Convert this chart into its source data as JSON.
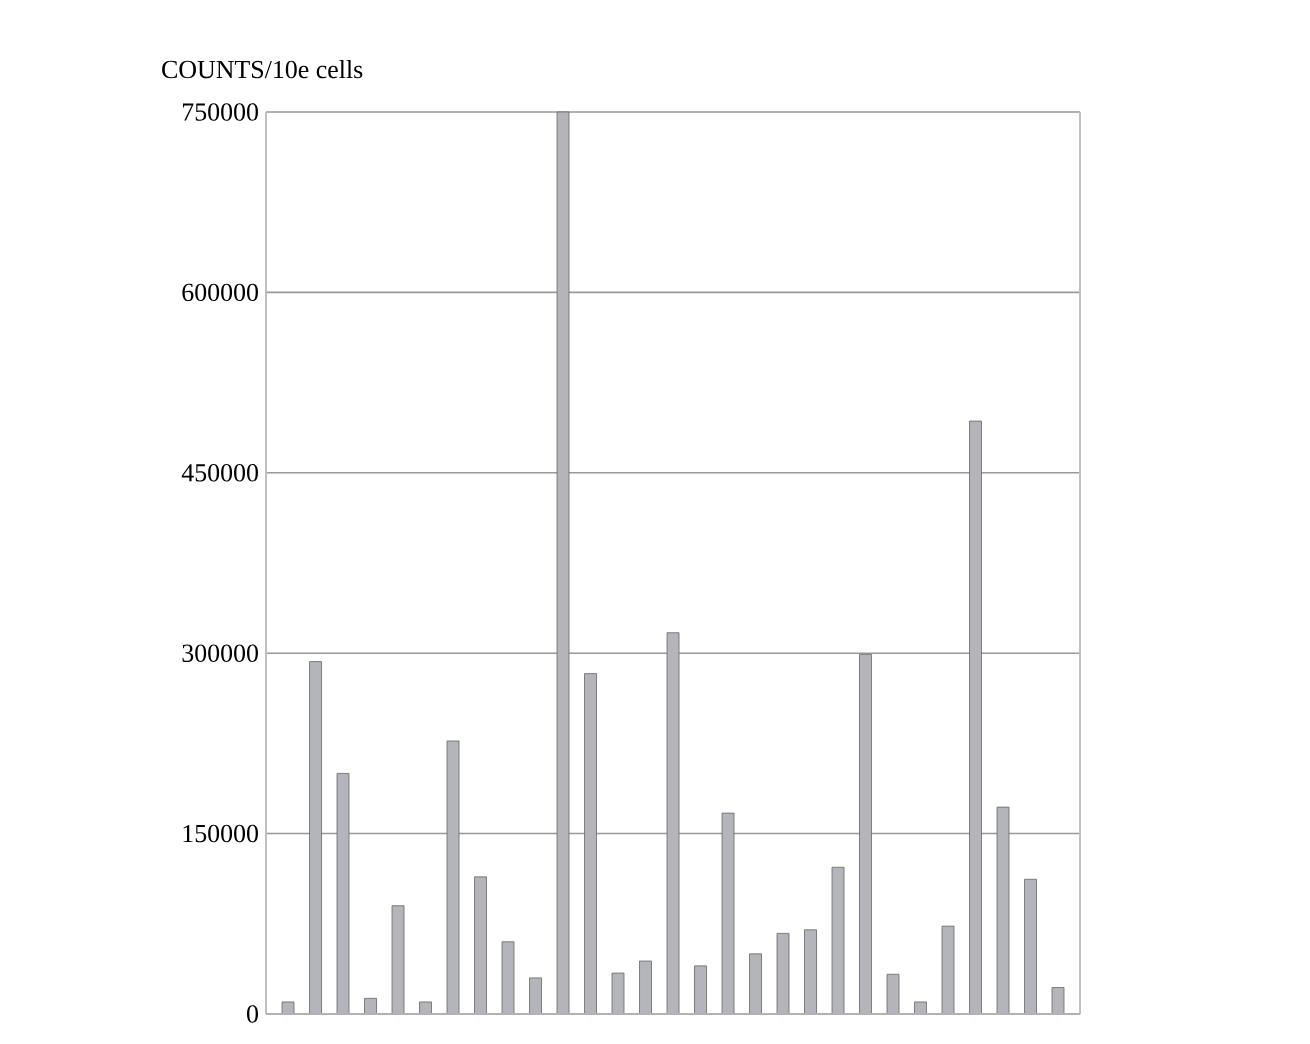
{
  "chart_data": {
    "type": "bar",
    "ylabel": "COUNTS/10e cells",
    "categories": [
      null,
      null,
      null,
      null,
      null,
      null,
      null,
      null,
      null,
      null,
      null,
      null,
      null,
      null,
      null,
      null,
      null,
      null,
      null,
      null,
      null,
      null,
      null,
      null,
      null,
      null,
      null,
      null,
      null
    ],
    "values": [
      10000,
      293000,
      200000,
      13000,
      90000,
      10000,
      227000,
      114000,
      60000,
      30000,
      750000,
      283000,
      34000,
      44000,
      317000,
      40000,
      167000,
      50000,
      67000,
      70000,
      122000,
      299000,
      33000,
      10000,
      73000,
      493000,
      172000,
      112000,
      22000
    ],
    "color": "#b4b5ba",
    "ylim": [
      0,
      750000
    ],
    "yticks": [
      0,
      150000,
      300000,
      450000,
      600000,
      750000
    ],
    "grid": "y"
  }
}
